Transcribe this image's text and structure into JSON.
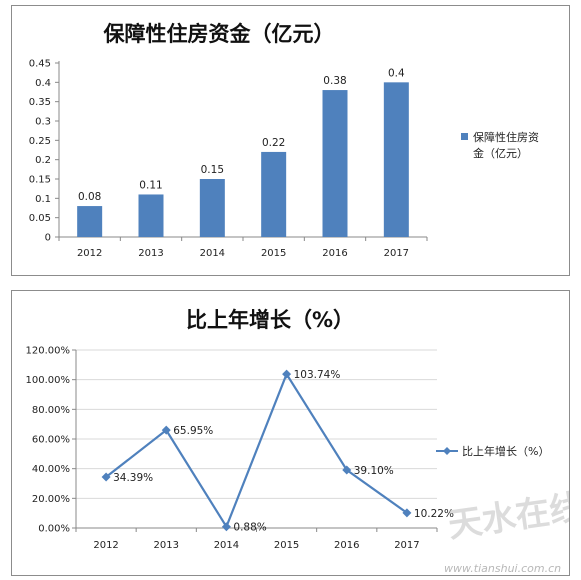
{
  "chart_data": [
    {
      "type": "bar",
      "title": "保障性住房资金（亿元）",
      "categories": [
        "2012",
        "2013",
        "2014",
        "2015",
        "2016",
        "2017"
      ],
      "series": [
        {
          "name": "保障性住房资金（亿元）",
          "values": [
            0.08,
            0.11,
            0.15,
            0.22,
            0.38,
            0.4
          ]
        }
      ],
      "data_labels": [
        "0.08",
        "0.11",
        "0.15",
        "0.22",
        "0.38",
        "0.4"
      ],
      "yticks": [
        "0",
        "0.05",
        "0.1",
        "0.15",
        "0.2",
        "0.25",
        "0.3",
        "0.35",
        "0.4",
        "0.45"
      ],
      "ylim": [
        0,
        0.45
      ],
      "legend_lines": [
        "保障性住房资",
        "金（亿元）"
      ],
      "legend_position": "right",
      "color": "#4f81bd"
    },
    {
      "type": "line",
      "title": "比上年增长（%）",
      "categories": [
        "2012",
        "2013",
        "2014",
        "2015",
        "2016",
        "2017"
      ],
      "series": [
        {
          "name": "比上年增长（%）",
          "values": [
            34.39,
            65.95,
            0.88,
            103.74,
            39.1,
            10.22
          ]
        }
      ],
      "data_labels": [
        "34.39%",
        "65.95%",
        "0.88%",
        "103.74%",
        "39.10%",
        "10.22%"
      ],
      "yticks": [
        "0.00%",
        "20.00%",
        "40.00%",
        "60.00%",
        "80.00%",
        "100.00%",
        "120.00%"
      ],
      "ylim": [
        0,
        120
      ],
      "legend_position": "right",
      "color": "#4f81bd"
    }
  ],
  "watermark": {
    "logo_text": "天水在线",
    "url_text": "www.tianshui.com.cn"
  }
}
